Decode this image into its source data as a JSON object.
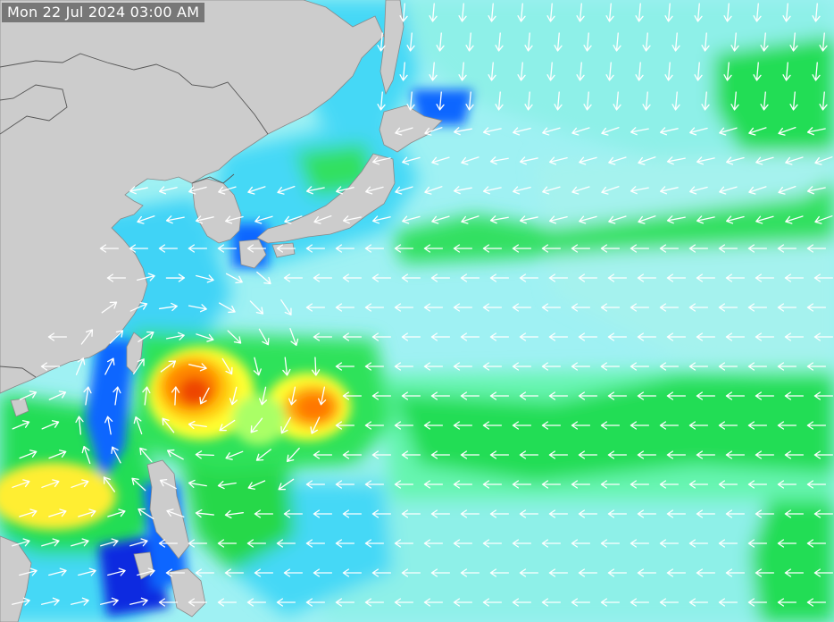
{
  "header": {
    "timestamp": "Mon 22 Jul 2024 03:00 AM"
  },
  "map": {
    "colors": {
      "land": "#cccccc",
      "border": "#555555",
      "ocean_calm": "#3fd3f6",
      "ocean_light": "#8ef0e8",
      "ocean_moderate": "#66f5b0",
      "ocean_green": "#22dd55",
      "ocean_dark_green": "#16c23a",
      "ocean_deep_blue": "#1166ff",
      "ocean_navy": "#0a2be0",
      "swell_yellow": "#ffff33",
      "swell_gold": "#ffcc11",
      "swell_orange": "#ff8800",
      "swell_red": "#ee4400",
      "arrow": "#ffffff"
    },
    "arrow_icon": "wind-direction-arrow-icon"
  }
}
